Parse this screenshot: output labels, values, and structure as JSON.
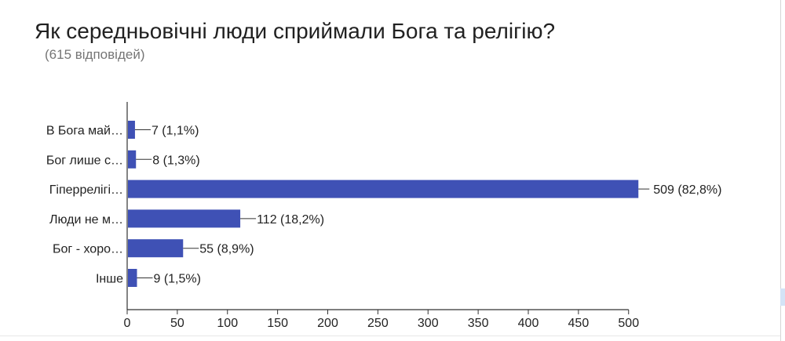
{
  "header": {
    "title": "Як середньовічні люди сприймали Бога та релігію?",
    "subtitle": "(615 відповідей)"
  },
  "chart_data": {
    "type": "bar",
    "orientation": "horizontal",
    "categories": [
      "В Бога май…",
      "Бог лише с…",
      "Гіперрелігі…",
      "Люди не м…",
      "Бог - хоро…",
      "Інше"
    ],
    "values": [
      7,
      8,
      509,
      112,
      55,
      9
    ],
    "data_labels": [
      "7 (1,1%)",
      "8 (1,3%)",
      "509 (82,8%)",
      "112 (18,2%)",
      "55 (8,9%)",
      "9 (1,5%)"
    ],
    "x_ticks": [
      0,
      50,
      100,
      150,
      200,
      250,
      300,
      350,
      400,
      450,
      500
    ],
    "xlim": [
      0,
      509
    ],
    "xlabel": "",
    "ylabel": "",
    "grid": false,
    "bar_color": "#3f51b5"
  }
}
